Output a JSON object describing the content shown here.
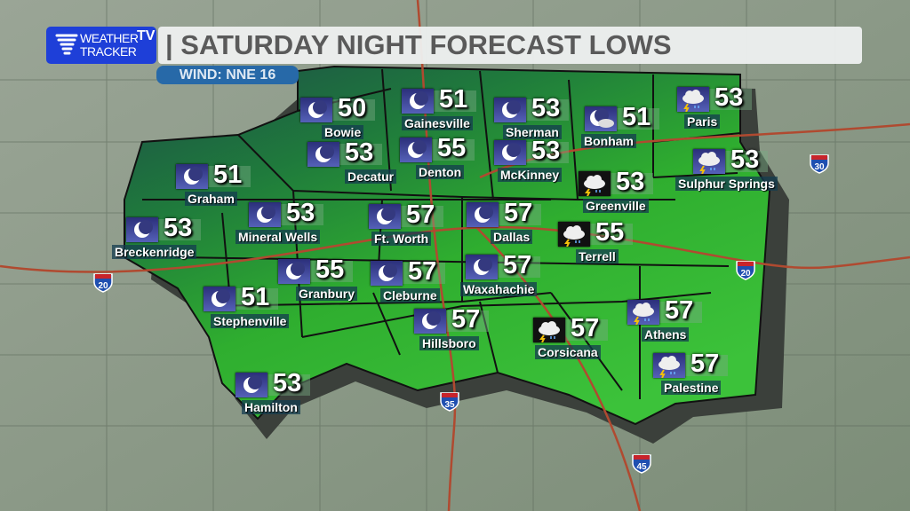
{
  "logo": {
    "line1": "WEATHER",
    "line2": "TRACKER",
    "tv": "TV"
  },
  "header": {
    "title": "| SATURDAY NIGHT FORECAST LOWS",
    "wind": "WIND: NNE 16"
  },
  "colors": {
    "logo_blue": "#1e3fd8",
    "wind_badge": "#2769a8",
    "region_green": "#2fb02f",
    "region_teal": "#1f5a4a",
    "roads": "#b04a30"
  },
  "interstates": [
    "20",
    "30",
    "35",
    "45",
    "20"
  ],
  "cities": [
    {
      "name": "Bowie",
      "temp": "50",
      "icon": "moon"
    },
    {
      "name": "Gainesville",
      "temp": "51",
      "icon": "moon"
    },
    {
      "name": "Sherman",
      "temp": "53",
      "icon": "moon"
    },
    {
      "name": "Bonham",
      "temp": "51",
      "icon": "partly-cloudy-night"
    },
    {
      "name": "Paris",
      "temp": "53",
      "icon": "thunderstorm"
    },
    {
      "name": "Decatur",
      "temp": "53",
      "icon": "moon"
    },
    {
      "name": "Denton",
      "temp": "55",
      "icon": "moon"
    },
    {
      "name": "McKinney",
      "temp": "53",
      "icon": "moon"
    },
    {
      "name": "Sulphur Springs",
      "temp": "53",
      "icon": "thunderstorm"
    },
    {
      "name": "Greenville",
      "temp": "53",
      "icon": "thunderstorm-night"
    },
    {
      "name": "Graham",
      "temp": "51",
      "icon": "moon"
    },
    {
      "name": "Breckenridge",
      "temp": "53",
      "icon": "moon"
    },
    {
      "name": "Mineral Wells",
      "temp": "53",
      "icon": "moon"
    },
    {
      "name": "Ft. Worth",
      "temp": "57",
      "icon": "moon"
    },
    {
      "name": "Dallas",
      "temp": "57",
      "icon": "moon"
    },
    {
      "name": "Terrell",
      "temp": "55",
      "icon": "thunderstorm-night"
    },
    {
      "name": "Granbury",
      "temp": "55",
      "icon": "moon"
    },
    {
      "name": "Cleburne",
      "temp": "57",
      "icon": "moon"
    },
    {
      "name": "Waxahachie",
      "temp": "57",
      "icon": "moon"
    },
    {
      "name": "Stephenville",
      "temp": "51",
      "icon": "moon"
    },
    {
      "name": "Hillsboro",
      "temp": "57",
      "icon": "moon"
    },
    {
      "name": "Corsicana",
      "temp": "57",
      "icon": "thunderstorm-night"
    },
    {
      "name": "Athens",
      "temp": "57",
      "icon": "thunderstorm"
    },
    {
      "name": "Palestine",
      "temp": "57",
      "icon": "thunderstorm"
    },
    {
      "name": "Hamilton",
      "temp": "53",
      "icon": "moon"
    }
  ]
}
